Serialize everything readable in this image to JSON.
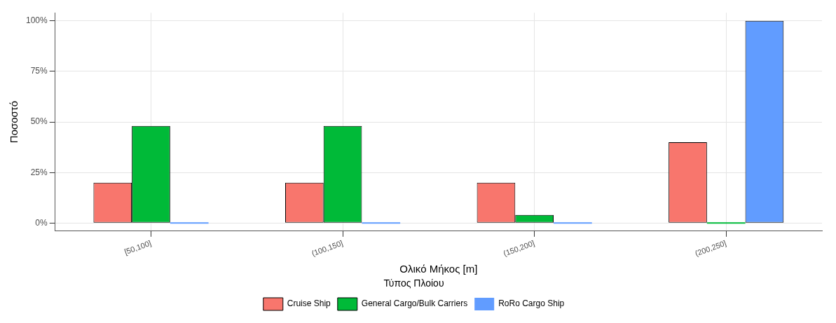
{
  "chart_data": {
    "type": "bar",
    "xlabel": "Ολικό Μήκος [m]",
    "ylabel": "Ποσοστό",
    "legend_title": "Τύπος Πλοίου",
    "legend": "bottom",
    "grid": true,
    "categories": [
      "[50,100]",
      "(100,150]",
      "(150,200]",
      "(200,250]"
    ],
    "series": [
      {
        "name": "Cruise Ship",
        "color": "#f8766d",
        "values": [
          20,
          20,
          20,
          40
        ]
      },
      {
        "name": "General Cargo/Bulk Carriers",
        "color": "#00ba38",
        "values": [
          48,
          48,
          4,
          0
        ]
      },
      {
        "name": "RoRo Cargo Ship",
        "color": "#619cff",
        "values": [
          0,
          0,
          0,
          100
        ]
      }
    ],
    "ylim": [
      -4,
      104
    ],
    "yticks": [
      {
        "value": 0,
        "label": "0%"
      },
      {
        "value": 25,
        "label": "25%"
      },
      {
        "value": 50,
        "label": "50%"
      },
      {
        "value": 75,
        "label": "75%"
      },
      {
        "value": 100,
        "label": "100%"
      }
    ]
  }
}
